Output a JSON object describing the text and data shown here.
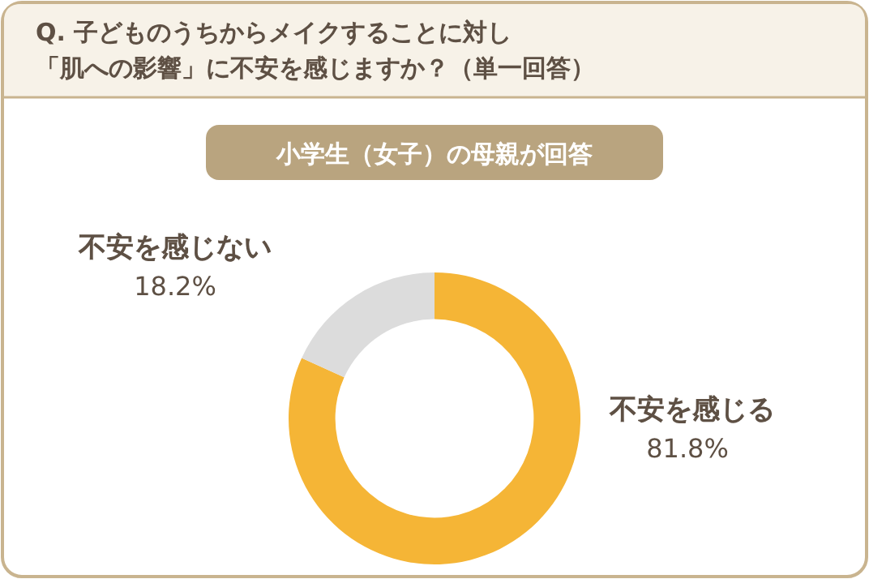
{
  "chart_data": {
    "type": "donut",
    "title": "Q. 子どものうちからメイクすることに対し「肌への影響」に不安を感じますか？（単一回答）",
    "subtitle": "小学生（女子）の母親が回答",
    "categories": [
      "不安を感じる",
      "不安を感じない"
    ],
    "values": [
      81.8,
      18.2
    ],
    "value_labels": [
      "81.8%",
      "18.2%"
    ],
    "colors": [
      "#f5b536",
      "#dcdcdc"
    ]
  }
}
